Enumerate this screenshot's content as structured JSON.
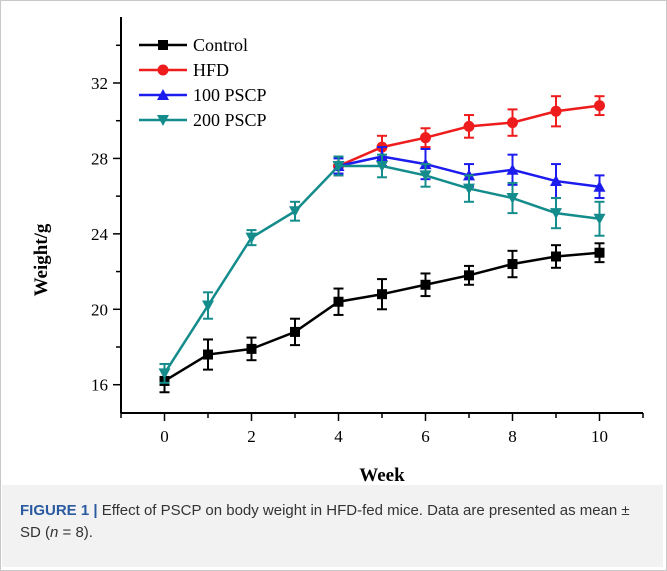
{
  "chart_data": {
    "type": "line",
    "xlabel": "Week",
    "ylabel": "Weight/g",
    "xlim": [
      -1,
      11
    ],
    "ylim": [
      14.5,
      35.5
    ],
    "xticks": [
      0,
      2,
      4,
      6,
      8,
      10
    ],
    "yticks": [
      16,
      20,
      24,
      28,
      32
    ],
    "grid": false,
    "legend_position": "top-left",
    "series": [
      {
        "name": "Control",
        "color": "#000000",
        "marker": "square",
        "x": [
          0,
          1,
          2,
          3,
          4,
          5,
          6,
          7,
          8,
          9,
          10
        ],
        "y": [
          16.2,
          17.6,
          17.9,
          18.8,
          20.4,
          20.8,
          21.3,
          21.8,
          22.4,
          22.8,
          23.0
        ],
        "error": [
          0.6,
          0.8,
          0.6,
          0.7,
          0.7,
          0.8,
          0.6,
          0.5,
          0.7,
          0.6,
          0.5
        ]
      },
      {
        "name": "HFD",
        "color": "#ee1c1c",
        "marker": "circle",
        "x": [
          4,
          5,
          6,
          7,
          8,
          9,
          10
        ],
        "y": [
          27.6,
          28.6,
          29.1,
          29.7,
          29.9,
          30.5,
          30.8
        ],
        "error": [
          0.5,
          0.6,
          0.5,
          0.6,
          0.7,
          0.8,
          0.5
        ]
      },
      {
        "name": "100 PSCP",
        "color": "#1c1cee",
        "marker": "triangle-up",
        "x": [
          4,
          5,
          6,
          7,
          8,
          9,
          10
        ],
        "y": [
          27.6,
          28.1,
          27.7,
          27.1,
          27.4,
          26.8,
          26.5
        ],
        "error": [
          0.4,
          0.5,
          0.8,
          0.6,
          0.8,
          0.9,
          0.6
        ]
      },
      {
        "name": "200 PSCP",
        "color": "#158c8c",
        "marker": "triangle-down",
        "x": [
          0,
          1,
          2,
          3,
          4,
          5,
          6,
          7,
          8,
          9,
          10
        ],
        "y": [
          16.6,
          20.2,
          23.8,
          25.2,
          27.6,
          27.6,
          27.1,
          26.4,
          25.9,
          25.1,
          24.8
        ],
        "error": [
          0.5,
          0.7,
          0.4,
          0.5,
          0.5,
          0.6,
          0.6,
          0.7,
          0.8,
          0.8,
          0.9
        ]
      }
    ]
  },
  "caption": {
    "label": "FIGURE 1 |",
    "text_before_n": " Effect of PSCP on body weight in HFD-fed mice. Data are presented as mean ± SD (",
    "n_symbol": "n",
    "text_after_n": " = 8)."
  }
}
